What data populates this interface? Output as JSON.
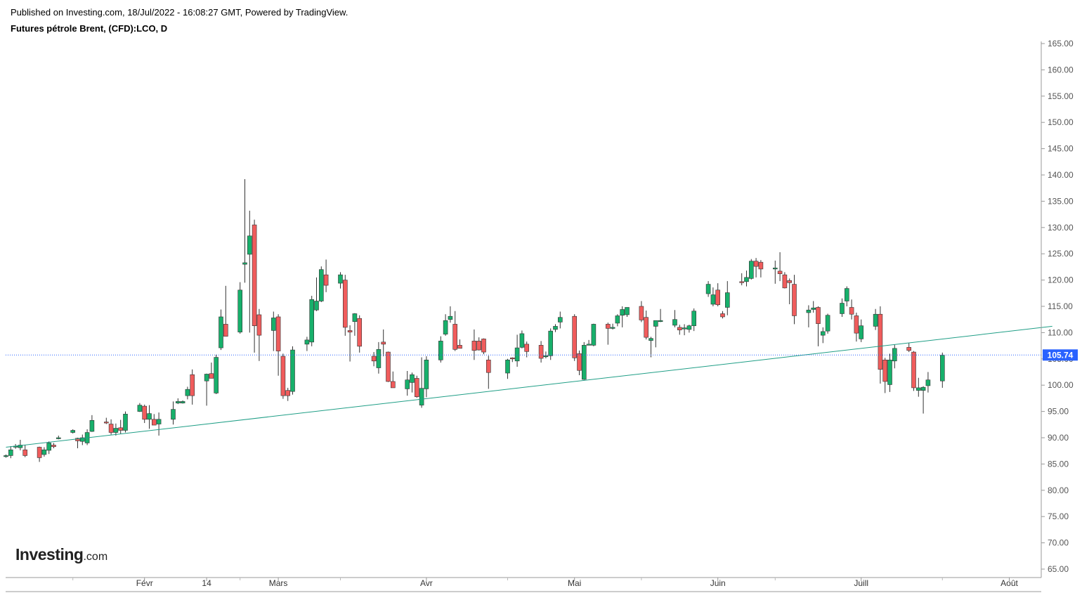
{
  "header": {
    "published": "Published on Investing.com, 18/Jul/2022 - 16:08:27 GMT, Powered by TradingView.",
    "symbol": "Futures pétrole Brent, (CFD):LCO, D"
  },
  "logo": {
    "brand": "Investing",
    "suffix": ".com"
  },
  "colors": {
    "up": "#17b06b",
    "down": "#f05c5c",
    "trendline": "#1f9e86",
    "price_line": "#2962ff",
    "price_label_bg": "#2962ff"
  },
  "chart_data": {
    "type": "candlestick",
    "ylim": [
      65,
      165
    ],
    "y_ticks": [
      "165.00",
      "160.00",
      "155.00",
      "150.00",
      "145.00",
      "140.00",
      "135.00",
      "130.00",
      "125.00",
      "120.00",
      "115.00",
      "110.00",
      "105.00",
      "100.00",
      "95.00",
      "90.00",
      "85.00",
      "80.00",
      "75.00",
      "70.00",
      "65.00"
    ],
    "x_labels": [
      {
        "label": "Févr",
        "date": "2022-02-01"
      },
      {
        "label": "14",
        "date": "2022-02-14"
      },
      {
        "label": "Mars",
        "date": "2022-03-01"
      },
      {
        "label": "Avr",
        "date": "2022-04-01"
      },
      {
        "label": "Mai",
        "date": "2022-05-02"
      },
      {
        "label": "Juin",
        "date": "2022-06-01"
      },
      {
        "label": "Juill",
        "date": "2022-07-01"
      },
      {
        "label": "Août",
        "date": "2022-08-01"
      }
    ],
    "current_price": "105.74",
    "trendline": [
      {
        "date": "2022-01-03",
        "y": 88.2
      },
      {
        "date": "2022-08-10",
        "y": 111.2
      }
    ],
    "candles": [
      {
        "d": "2022-01-03",
        "o": 86.5,
        "h": 86.8,
        "l": 86.2,
        "c": 86.6
      },
      {
        "d": "2022-01-04",
        "o": 86.6,
        "h": 88.4,
        "l": 86.1,
        "c": 87.7
      },
      {
        "d": "2022-01-05",
        "o": 88.4,
        "h": 88.8,
        "l": 87.9,
        "c": 88.4
      },
      {
        "d": "2022-01-06",
        "o": 88.1,
        "h": 89.6,
        "l": 87.6,
        "c": 88.6
      },
      {
        "d": "2022-01-07",
        "o": 87.7,
        "h": 88.6,
        "l": 86.3,
        "c": 86.6
      },
      {
        "d": "2022-01-10",
        "o": 88.2,
        "h": 88.3,
        "l": 85.4,
        "c": 86.2
      },
      {
        "d": "2022-01-11",
        "o": 86.8,
        "h": 88.2,
        "l": 86.4,
        "c": 87.7
      },
      {
        "d": "2022-01-12",
        "o": 87.6,
        "h": 89.3,
        "l": 86.9,
        "c": 89.0
      },
      {
        "d": "2022-01-13",
        "o": 88.6,
        "h": 89.0,
        "l": 88.0,
        "c": 88.3
      },
      {
        "d": "2022-01-14",
        "o": 89.9,
        "h": 90.4,
        "l": 89.7,
        "c": 90.0
      },
      {
        "d": "2022-01-17",
        "o": 91.0,
        "h": 91.6,
        "l": 90.8,
        "c": 91.4
      },
      {
        "d": "2022-01-18",
        "o": 89.9,
        "h": 90.0,
        "l": 88.0,
        "c": 89.4
      },
      {
        "d": "2022-01-19",
        "o": 89.3,
        "h": 90.6,
        "l": 88.6,
        "c": 90.0
      },
      {
        "d": "2022-01-20",
        "o": 89.0,
        "h": 91.6,
        "l": 88.6,
        "c": 91.0
      },
      {
        "d": "2022-01-21",
        "o": 91.2,
        "h": 94.3,
        "l": 91.1,
        "c": 93.3
      },
      {
        "d": "2022-01-24",
        "o": 93.0,
        "h": 93.8,
        "l": 92.6,
        "c": 92.9
      },
      {
        "d": "2022-01-25",
        "o": 92.6,
        "h": 93.5,
        "l": 90.6,
        "c": 91.0
      },
      {
        "d": "2022-01-26",
        "o": 91.0,
        "h": 92.7,
        "l": 90.4,
        "c": 91.8
      },
      {
        "d": "2022-01-27",
        "o": 91.9,
        "h": 93.4,
        "l": 90.7,
        "c": 91.4
      },
      {
        "d": "2022-01-28",
        "o": 91.4,
        "h": 95.0,
        "l": 91.0,
        "c": 94.5
      },
      {
        "d": "2022-01-31",
        "o": 95.0,
        "h": 96.6,
        "l": 94.9,
        "c": 96.2
      },
      {
        "d": "2022-02-01",
        "o": 96.0,
        "h": 96.3,
        "l": 92.8,
        "c": 93.5
      },
      {
        "d": "2022-02-02",
        "o": 93.5,
        "h": 96.2,
        "l": 91.7,
        "c": 94.6
      },
      {
        "d": "2022-02-03",
        "o": 93.5,
        "h": 94.5,
        "l": 92.4,
        "c": 92.4
      },
      {
        "d": "2022-02-04",
        "o": 92.6,
        "h": 94.8,
        "l": 90.4,
        "c": 93.5
      },
      {
        "d": "2022-02-07",
        "o": 93.5,
        "h": 96.9,
        "l": 92.5,
        "c": 95.4
      },
      {
        "d": "2022-02-08",
        "o": 96.6,
        "h": 97.5,
        "l": 96.4,
        "c": 96.9
      },
      {
        "d": "2022-02-09",
        "o": 96.6,
        "h": 97.1,
        "l": 96.5,
        "c": 96.9
      },
      {
        "d": "2022-02-10",
        "o": 98.0,
        "h": 99.7,
        "l": 97.3,
        "c": 99.2
      },
      {
        "d": "2022-02-11",
        "o": 102.0,
        "h": 103.0,
        "l": 96.3,
        "c": 98.0
      },
      {
        "d": "2022-02-14",
        "o": 100.8,
        "h": 102.2,
        "l": 96.1,
        "c": 102.1
      },
      {
        "d": "2022-02-15",
        "o": 102.2,
        "h": 104.3,
        "l": 101.5,
        "c": 101.3
      },
      {
        "d": "2022-02-16",
        "o": 98.5,
        "h": 105.8,
        "l": 98.3,
        "c": 105.3
      },
      {
        "d": "2022-02-17",
        "o": 107.1,
        "h": 114.4,
        "l": 106.7,
        "c": 113.0
      },
      {
        "d": "2022-02-18",
        "o": 111.6,
        "h": 118.9,
        "l": 110.0,
        "c": 109.3
      },
      {
        "d": "2022-02-21",
        "o": 110.1,
        "h": 119.6,
        "l": 109.8,
        "c": 118.1
      },
      {
        "d": "2022-02-22",
        "o": 123.0,
        "h": 139.2,
        "l": 119.5,
        "c": 123.3
      },
      {
        "d": "2022-02-23",
        "o": 124.9,
        "h": 133.2,
        "l": 110.0,
        "c": 128.4
      },
      {
        "d": "2022-02-24",
        "o": 130.5,
        "h": 131.5,
        "l": 106.2,
        "c": 111.3
      },
      {
        "d": "2022-02-25",
        "o": 113.4,
        "h": 114.5,
        "l": 104.6,
        "c": 109.5
      },
      {
        "d": "2022-02-28",
        "o": 110.4,
        "h": 114.0,
        "l": 106.5,
        "c": 112.8
      },
      {
        "d": "2022-03-01",
        "o": 113.0,
        "h": 113.5,
        "l": 101.8,
        "c": 106.5
      },
      {
        "d": "2022-03-02",
        "o": 105.5,
        "h": 106.0,
        "l": 97.4,
        "c": 98.0
      },
      {
        "d": "2022-03-03",
        "o": 99.0,
        "h": 99.5,
        "l": 97.0,
        "c": 98.0
      },
      {
        "d": "2022-03-04",
        "o": 98.8,
        "h": 107.4,
        "l": 98.2,
        "c": 106.7
      },
      {
        "d": "2022-03-07",
        "o": 107.8,
        "h": 109.2,
        "l": 106.5,
        "c": 108.6
      },
      {
        "d": "2022-03-08",
        "o": 108.2,
        "h": 117.0,
        "l": 107.4,
        "c": 116.3
      },
      {
        "d": "2022-03-09",
        "o": 114.3,
        "h": 120.5,
        "l": 114.1,
        "c": 116.0
      },
      {
        "d": "2022-03-10",
        "o": 116.0,
        "h": 122.6,
        "l": 115.8,
        "c": 122.0
      },
      {
        "d": "2022-03-11",
        "o": 121.0,
        "h": 123.9,
        "l": 117.7,
        "c": 119.0
      },
      {
        "d": "2022-03-14",
        "o": 119.4,
        "h": 121.5,
        "l": 118.4,
        "c": 121.0
      },
      {
        "d": "2022-03-15",
        "o": 120.0,
        "h": 121.0,
        "l": 109.4,
        "c": 111.0
      },
      {
        "d": "2022-03-16",
        "o": 110.4,
        "h": 111.4,
        "l": 104.5,
        "c": 110.1
      },
      {
        "d": "2022-03-17",
        "o": 112.1,
        "h": 113.7,
        "l": 109.4,
        "c": 113.6
      },
      {
        "d": "2022-03-18",
        "o": 112.7,
        "h": 113.3,
        "l": 106.2,
        "c": 107.4
      },
      {
        "d": "2022-03-21",
        "o": 105.5,
        "h": 106.3,
        "l": 103.6,
        "c": 104.6
      },
      {
        "d": "2022-03-22",
        "o": 103.3,
        "h": 108.2,
        "l": 102.2,
        "c": 106.8
      },
      {
        "d": "2022-03-23",
        "o": 108.2,
        "h": 110.6,
        "l": 105.5,
        "c": 107.8
      },
      {
        "d": "2022-03-24",
        "o": 106.3,
        "h": 106.4,
        "l": 100.6,
        "c": 100.7
      },
      {
        "d": "2022-03-25",
        "o": 100.7,
        "h": 102.6,
        "l": 100.4,
        "c": 99.5
      },
      {
        "d": "2022-03-28",
        "o": 99.3,
        "h": 102.7,
        "l": 98.0,
        "c": 101.0
      },
      {
        "d": "2022-03-29",
        "o": 100.5,
        "h": 102.4,
        "l": 98.6,
        "c": 102.0
      },
      {
        "d": "2022-03-30",
        "o": 101.3,
        "h": 101.8,
        "l": 97.6,
        "c": 97.8
      },
      {
        "d": "2022-03-31",
        "o": 96.2,
        "h": 105.3,
        "l": 95.7,
        "c": 99.4
      },
      {
        "d": "2022-04-01",
        "o": 99.3,
        "h": 105.5,
        "l": 97.7,
        "c": 104.8
      },
      {
        "d": "2022-04-04",
        "o": 104.8,
        "h": 109.3,
        "l": 104.3,
        "c": 108.4
      },
      {
        "d": "2022-04-05",
        "o": 109.7,
        "h": 113.5,
        "l": 109.4,
        "c": 112.3
      },
      {
        "d": "2022-04-06",
        "o": 112.5,
        "h": 115.0,
        "l": 111.9,
        "c": 113.1
      },
      {
        "d": "2022-04-07",
        "o": 111.6,
        "h": 114.1,
        "l": 106.5,
        "c": 106.8
      },
      {
        "d": "2022-04-08",
        "o": 107.6,
        "h": 108.7,
        "l": 107.0,
        "c": 107.0
      },
      {
        "d": "2022-04-11",
        "o": 108.4,
        "h": 110.6,
        "l": 104.8,
        "c": 106.6
      },
      {
        "d": "2022-04-12",
        "o": 108.4,
        "h": 109.1,
        "l": 106.6,
        "c": 106.7
      },
      {
        "d": "2022-04-13",
        "o": 108.8,
        "h": 108.9,
        "l": 105.9,
        "c": 106.3
      },
      {
        "d": "2022-04-14",
        "o": 104.8,
        "h": 105.6,
        "l": 99.3,
        "c": 102.4
      },
      {
        "d": "2022-04-18",
        "o": 102.3,
        "h": 105.0,
        "l": 101.2,
        "c": 104.8
      },
      {
        "d": "2022-04-19",
        "o": 105.2,
        "h": 105.3,
        "l": 104.4,
        "c": 105.0
      },
      {
        "d": "2022-04-20",
        "o": 104.6,
        "h": 109.6,
        "l": 103.5,
        "c": 107.1
      },
      {
        "d": "2022-04-21",
        "o": 107.2,
        "h": 110.4,
        "l": 107.0,
        "c": 109.8
      },
      {
        "d": "2022-04-22",
        "o": 107.8,
        "h": 108.3,
        "l": 105.3,
        "c": 106.4
      },
      {
        "d": "2022-04-25",
        "o": 107.6,
        "h": 108.4,
        "l": 104.3,
        "c": 105.1
      },
      {
        "d": "2022-04-26",
        "o": 105.4,
        "h": 106.4,
        "l": 105.1,
        "c": 105.6
      },
      {
        "d": "2022-04-27",
        "o": 105.6,
        "h": 110.8,
        "l": 104.8,
        "c": 110.3
      },
      {
        "d": "2022-04-28",
        "o": 110.6,
        "h": 111.6,
        "l": 110.1,
        "c": 111.2
      },
      {
        "d": "2022-04-29",
        "o": 112.0,
        "h": 114.0,
        "l": 110.8,
        "c": 112.9
      },
      {
        "d": "2022-05-02",
        "o": 113.1,
        "h": 113.5,
        "l": 104.6,
        "c": 105.2
      },
      {
        "d": "2022-05-03",
        "o": 106.0,
        "h": 106.6,
        "l": 101.9,
        "c": 102.8
      },
      {
        "d": "2022-05-04",
        "o": 101.1,
        "h": 108.2,
        "l": 101.0,
        "c": 107.6
      },
      {
        "d": "2022-05-05",
        "o": 107.8,
        "h": 108.6,
        "l": 107.6,
        "c": 107.8
      },
      {
        "d": "2022-05-06",
        "o": 107.6,
        "h": 111.7,
        "l": 107.4,
        "c": 111.6
      },
      {
        "d": "2022-05-09",
        "o": 111.6,
        "h": 111.9,
        "l": 107.7,
        "c": 110.8
      },
      {
        "d": "2022-05-10",
        "o": 110.8,
        "h": 111.7,
        "l": 110.6,
        "c": 111.0
      },
      {
        "d": "2022-05-11",
        "o": 111.8,
        "h": 113.5,
        "l": 111.2,
        "c": 113.2
      },
      {
        "d": "2022-05-12",
        "o": 113.3,
        "h": 115.0,
        "l": 111.0,
        "c": 114.4
      },
      {
        "d": "2022-05-13",
        "o": 113.4,
        "h": 114.6,
        "l": 113.0,
        "c": 114.8
      },
      {
        "d": "2022-05-16",
        "o": 115.0,
        "h": 116.0,
        "l": 112.0,
        "c": 112.4
      },
      {
        "d": "2022-05-17",
        "o": 112.9,
        "h": 114.2,
        "l": 108.7,
        "c": 109.1
      },
      {
        "d": "2022-05-18",
        "o": 108.5,
        "h": 109.2,
        "l": 105.3,
        "c": 108.9
      },
      {
        "d": "2022-05-19",
        "o": 111.2,
        "h": 112.1,
        "l": 107.2,
        "c": 112.3
      },
      {
        "d": "2022-05-20",
        "o": 112.3,
        "h": 114.5,
        "l": 112.0,
        "c": 112.3
      },
      {
        "d": "2022-05-23",
        "o": 111.4,
        "h": 114.3,
        "l": 111.0,
        "c": 112.5
      },
      {
        "d": "2022-05-24",
        "o": 111.0,
        "h": 111.5,
        "l": 109.6,
        "c": 110.5
      },
      {
        "d": "2022-05-25",
        "o": 110.7,
        "h": 111.6,
        "l": 109.5,
        "c": 110.9
      },
      {
        "d": "2022-05-26",
        "o": 110.6,
        "h": 111.5,
        "l": 110.0,
        "c": 111.3
      },
      {
        "d": "2022-05-27",
        "o": 111.3,
        "h": 114.6,
        "l": 110.3,
        "c": 114.1
      },
      {
        "d": "2022-05-30",
        "o": 117.4,
        "h": 119.8,
        "l": 116.8,
        "c": 119.2
      },
      {
        "d": "2022-05-31",
        "o": 115.4,
        "h": 118.6,
        "l": 115.0,
        "c": 117.2
      },
      {
        "d": "2022-06-01",
        "o": 118.1,
        "h": 119.4,
        "l": 115.0,
        "c": 115.3
      },
      {
        "d": "2022-06-02",
        "o": 113.6,
        "h": 114.1,
        "l": 112.7,
        "c": 113.0
      },
      {
        "d": "2022-06-03",
        "o": 114.8,
        "h": 119.8,
        "l": 113.3,
        "c": 117.6
      },
      {
        "d": "2022-06-06",
        "o": 119.7,
        "h": 121.3,
        "l": 119.0,
        "c": 119.5
      },
      {
        "d": "2022-06-07",
        "o": 119.7,
        "h": 121.8,
        "l": 118.8,
        "c": 120.5
      },
      {
        "d": "2022-06-08",
        "o": 120.3,
        "h": 124.0,
        "l": 120.1,
        "c": 123.6
      },
      {
        "d": "2022-06-09",
        "o": 123.6,
        "h": 124.2,
        "l": 120.5,
        "c": 122.6
      },
      {
        "d": "2022-06-10",
        "o": 123.4,
        "h": 123.8,
        "l": 120.5,
        "c": 122.1
      },
      {
        "d": "2022-06-13",
        "o": 122.3,
        "h": 123.7,
        "l": 119.3,
        "c": 122.3
      },
      {
        "d": "2022-06-14",
        "o": 121.7,
        "h": 125.3,
        "l": 119.8,
        "c": 121.2
      },
      {
        "d": "2022-06-15",
        "o": 121.0,
        "h": 121.5,
        "l": 118.4,
        "c": 118.5
      },
      {
        "d": "2022-06-16",
        "o": 119.9,
        "h": 120.3,
        "l": 115.4,
        "c": 119.5
      },
      {
        "d": "2022-06-17",
        "o": 119.2,
        "h": 121.0,
        "l": 111.6,
        "c": 113.2
      },
      {
        "d": "2022-06-20",
        "o": 113.8,
        "h": 115.2,
        "l": 111.0,
        "c": 114.3
      },
      {
        "d": "2022-06-21",
        "o": 114.4,
        "h": 116.0,
        "l": 113.8,
        "c": 114.7
      },
      {
        "d": "2022-06-22",
        "o": 114.8,
        "h": 115.0,
        "l": 107.4,
        "c": 111.7
      },
      {
        "d": "2022-06-23",
        "o": 109.5,
        "h": 111.0,
        "l": 108.0,
        "c": 110.2
      },
      {
        "d": "2022-06-24",
        "o": 110.3,
        "h": 113.6,
        "l": 109.8,
        "c": 113.3
      },
      {
        "d": "2022-06-27",
        "o": 113.6,
        "h": 116.5,
        "l": 113.0,
        "c": 115.6
      },
      {
        "d": "2022-06-28",
        "o": 116.0,
        "h": 118.8,
        "l": 115.0,
        "c": 118.4
      },
      {
        "d": "2022-06-29",
        "o": 114.8,
        "h": 116.3,
        "l": 112.5,
        "c": 113.5
      },
      {
        "d": "2022-06-30",
        "o": 113.2,
        "h": 113.8,
        "l": 108.3,
        "c": 109.9
      },
      {
        "d": "2022-07-01",
        "o": 108.8,
        "h": 112.5,
        "l": 108.2,
        "c": 111.3
      },
      {
        "d": "2022-07-04",
        "o": 111.2,
        "h": 114.5,
        "l": 110.5,
        "c": 113.5
      },
      {
        "d": "2022-07-05",
        "o": 113.5,
        "h": 115.0,
        "l": 100.3,
        "c": 103.0
      },
      {
        "d": "2022-07-06",
        "o": 104.8,
        "h": 105.2,
        "l": 98.5,
        "c": 100.7
      },
      {
        "d": "2022-07-07",
        "o": 100.1,
        "h": 106.0,
        "l": 98.7,
        "c": 104.8
      },
      {
        "d": "2022-07-08",
        "o": 104.6,
        "h": 107.7,
        "l": 103.2,
        "c": 107.0
      },
      {
        "d": "2022-07-11",
        "o": 107.2,
        "h": 108.0,
        "l": 106.3,
        "c": 106.6
      },
      {
        "d": "2022-07-12",
        "o": 106.3,
        "h": 106.5,
        "l": 98.9,
        "c": 99.5
      },
      {
        "d": "2022-07-13",
        "o": 99.0,
        "h": 101.4,
        "l": 97.8,
        "c": 99.5
      },
      {
        "d": "2022-07-14",
        "o": 99.0,
        "h": 99.8,
        "l": 94.6,
        "c": 99.6
      },
      {
        "d": "2022-07-15",
        "o": 99.9,
        "h": 102.5,
        "l": 98.6,
        "c": 101.0
      },
      {
        "d": "2022-07-18",
        "o": 100.8,
        "h": 106.2,
        "l": 99.5,
        "c": 105.7
      }
    ]
  }
}
